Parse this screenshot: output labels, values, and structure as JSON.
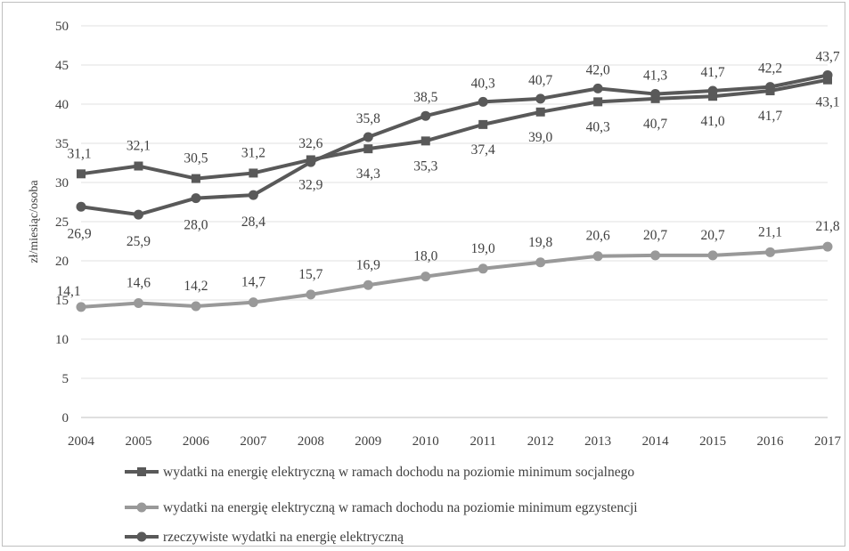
{
  "chart_data": {
    "type": "line",
    "title": "",
    "xlabel": "",
    "ylabel": "zł/miesiąc/osoba",
    "ylim": [
      0,
      50
    ],
    "yticks": [
      0,
      5,
      10,
      15,
      20,
      25,
      30,
      35,
      40,
      45,
      50
    ],
    "grid": "horizontal",
    "legend_position": "bottom",
    "categories": [
      "2004",
      "2005",
      "2006",
      "2007",
      "2008",
      "2009",
      "2010",
      "2011",
      "2012",
      "2013",
      "2014",
      "2015",
      "2016",
      "2017"
    ],
    "series": [
      {
        "name": "wydatki na energię elektryczną w ramach dochodu na poziomie minimum socjalnego",
        "marker": "square",
        "color": "#595959",
        "values": [
          31.1,
          32.1,
          30.5,
          31.2,
          32.9,
          34.3,
          35.3,
          37.4,
          39.0,
          40.3,
          40.7,
          41.0,
          41.7,
          43.1
        ],
        "labels": [
          "31,1",
          "32,1",
          "30,5",
          "31,2",
          "32,9",
          "34,3",
          "35,3",
          "37,4",
          "39,0",
          "40,3",
          "40,7",
          "41,0",
          "41,7",
          "43,1"
        ]
      },
      {
        "name": "wydatki na energię elektryczną w ramach dochodu na poziomie minimum egzystencji",
        "marker": "circle",
        "color": "#999999",
        "values": [
          14.1,
          14.6,
          14.2,
          14.7,
          15.7,
          16.9,
          18.0,
          19.0,
          19.8,
          20.6,
          20.7,
          20.7,
          21.1,
          21.8
        ],
        "labels": [
          "14,1",
          "14,6",
          "14,2",
          "14,7",
          "15,7",
          "16,9",
          "18,0",
          "19,0",
          "19,8",
          "20,6",
          "20,7",
          "20,7",
          "21,1",
          "21,8"
        ]
      },
      {
        "name": "rzeczywiste wydatki na energię elektryczną",
        "marker": "circle",
        "color": "#595959",
        "values": [
          26.9,
          25.9,
          28.0,
          28.4,
          32.6,
          35.8,
          38.5,
          40.3,
          40.7,
          42.0,
          41.3,
          41.7,
          42.2,
          43.7
        ],
        "labels": [
          "26,9",
          "25,9",
          "28,0",
          "28,4",
          "32,6",
          "35,8",
          "38,5",
          "40,3",
          "40,7",
          "42,0",
          "41,3",
          "41,7",
          "42,2",
          "43,7"
        ]
      }
    ]
  }
}
